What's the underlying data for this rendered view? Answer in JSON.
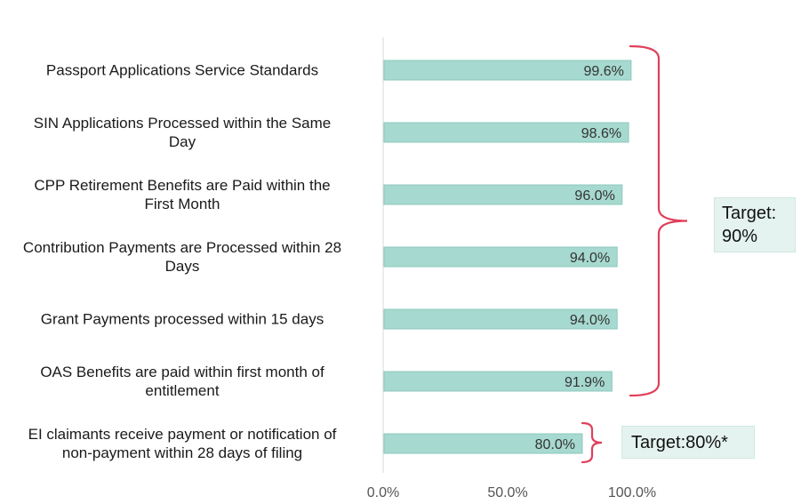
{
  "chart_data": {
    "type": "bar",
    "orientation": "horizontal",
    "categories": [
      "Passport Applications Service Standards",
      "SIN Applications Processed within the Same Day",
      "CPP Retirement Benefits are Paid within the First Month",
      "Contribution Payments are Processed within 28 Days",
      "Grant Payments processed within 15 days",
      "OAS Benefits are paid within first month of entitlement",
      "EI claimants receive payment or notification of non-payment within 28 days of filing"
    ],
    "category_lines": [
      [
        "Passport Applications Service Standards"
      ],
      [
        "SIN Applications Processed within the Same",
        "Day"
      ],
      [
        "CPP Retirement Benefits are Paid within the",
        "First Month"
      ],
      [
        "Contribution Payments are Processed within 28",
        "Days"
      ],
      [
        "Grant Payments processed within 15 days"
      ],
      [
        "OAS Benefits are paid within first month of",
        "entitlement"
      ],
      [
        "EI claimants receive payment or notification of",
        "non-payment within 28 days of filing"
      ]
    ],
    "values": [
      99.6,
      98.6,
      96.0,
      94.0,
      94.0,
      91.9,
      80.0
    ],
    "value_labels": [
      "99.6%",
      "98.6%",
      "96.0%",
      "94.0%",
      "94.0%",
      "91.9%",
      "80.0%"
    ],
    "xlim": [
      0,
      100
    ],
    "xticks": [
      0,
      50,
      100
    ],
    "xtick_labels": [
      "0.0%",
      "50.0%",
      "100.0%"
    ],
    "title": "",
    "xlabel": "",
    "ylabel": "",
    "grid": false,
    "bar_color": "#a6d9cf",
    "bar_border_color": "#8cc9bd",
    "brace_color": "#e0405a",
    "annotations": [
      {
        "text_lines": [
          "Target:",
          "90%"
        ],
        "applies_to": [
          0,
          1,
          2,
          3,
          4,
          5
        ]
      },
      {
        "text_lines": [
          "Target:80%*"
        ],
        "applies_to": [
          6
        ]
      }
    ]
  }
}
